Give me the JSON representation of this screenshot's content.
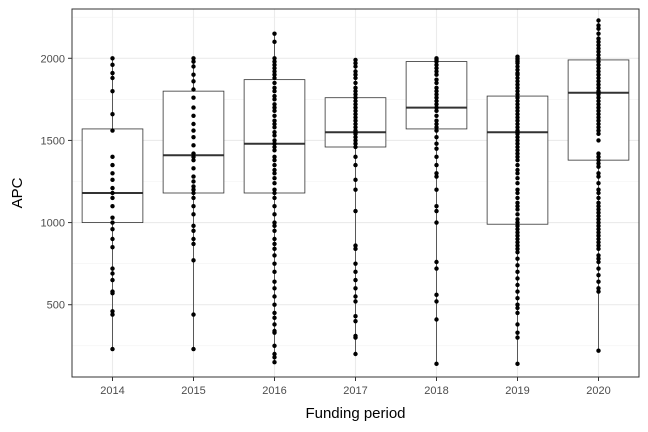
{
  "chart_data": {
    "type": "boxplot",
    "xlabel": "Funding period",
    "ylabel": "APC",
    "categories": [
      "2014",
      "2015",
      "2016",
      "2017",
      "2018",
      "2019",
      "2020"
    ],
    "ylim": [
      60,
      2300
    ],
    "yticks": [
      500,
      1000,
      1500,
      2000
    ],
    "grid": true,
    "boxes": [
      {
        "category": "2014",
        "min": 230,
        "q1": 1000,
        "median": 1180,
        "q3": 1570,
        "max": 2000
      },
      {
        "category": "2015",
        "min": 230,
        "q1": 1180,
        "median": 1410,
        "q3": 1800,
        "max": 2000
      },
      {
        "category": "2016",
        "min": 150,
        "q1": 1180,
        "median": 1480,
        "q3": 1870,
        "max": 2150
      },
      {
        "category": "2017",
        "min": 200,
        "q1": 1460,
        "median": 1550,
        "q3": 1760,
        "max": 1990
      },
      {
        "category": "2018",
        "min": 140,
        "q1": 1570,
        "median": 1700,
        "q3": 1980,
        "max": 2000
      },
      {
        "category": "2019",
        "min": 140,
        "q1": 990,
        "median": 1550,
        "q3": 1770,
        "max": 2010
      },
      {
        "category": "2020",
        "min": 220,
        "q1": 1380,
        "median": 1790,
        "q3": 1990,
        "max": 2230
      }
    ],
    "points": [
      {
        "category": "2014",
        "values": [
          2000,
          1960,
          1910,
          1880,
          1800,
          1660,
          1560,
          1400,
          1350,
          1300,
          1260,
          1210,
          1180,
          1150,
          1100,
          1030,
          1000,
          960,
          900,
          850,
          720,
          690,
          650,
          580,
          570,
          460,
          440,
          230
        ]
      },
      {
        "category": "2015",
        "values": [
          2000,
          1980,
          1950,
          1900,
          1860,
          1810,
          1760,
          1700,
          1650,
          1600,
          1560,
          1520,
          1470,
          1420,
          1400,
          1380,
          1330,
          1280,
          1250,
          1220,
          1200,
          1180,
          1150,
          1100,
          1050,
          980,
          950,
          900,
          870,
          770,
          440,
          230
        ]
      },
      {
        "category": "2016",
        "values": [
          2150,
          2100,
          2000,
          1980,
          1960,
          1940,
          1920,
          1900,
          1880,
          1850,
          1820,
          1800,
          1770,
          1750,
          1720,
          1700,
          1680,
          1650,
          1620,
          1600,
          1580,
          1550,
          1530,
          1500,
          1480,
          1460,
          1440,
          1400,
          1380,
          1350,
          1320,
          1300,
          1270,
          1240,
          1200,
          1180,
          1150,
          1100,
          1050,
          1000,
          980,
          950,
          900,
          870,
          840,
          800,
          750,
          700,
          640,
          600,
          550,
          500,
          450,
          420,
          380,
          340,
          330,
          250,
          200,
          180,
          150
        ]
      },
      {
        "category": "2017",
        "values": [
          1990,
          1970,
          1950,
          1920,
          1900,
          1880,
          1850,
          1820,
          1800,
          1780,
          1760,
          1740,
          1720,
          1700,
          1680,
          1660,
          1640,
          1620,
          1600,
          1580,
          1560,
          1550,
          1540,
          1520,
          1500,
          1480,
          1460,
          1400,
          1350,
          1260,
          1200,
          1070,
          860,
          840,
          750,
          700,
          650,
          600,
          550,
          520,
          430,
          400,
          310,
          300,
          200
        ]
      },
      {
        "category": "2018",
        "values": [
          2000,
          1990,
          1980,
          1960,
          1940,
          1920,
          1900,
          1870,
          1850,
          1820,
          1800,
          1780,
          1760,
          1740,
          1720,
          1700,
          1680,
          1650,
          1620,
          1600,
          1580,
          1560,
          1520,
          1480,
          1450,
          1400,
          1350,
          1300,
          1280,
          1200,
          1100,
          1070,
          1000,
          760,
          720,
          560,
          520,
          410,
          140
        ]
      },
      {
        "category": "2019",
        "values": [
          2010,
          2000,
          1990,
          1980,
          1970,
          1950,
          1930,
          1910,
          1900,
          1880,
          1860,
          1840,
          1820,
          1800,
          1780,
          1760,
          1740,
          1720,
          1700,
          1680,
          1660,
          1640,
          1620,
          1600,
          1580,
          1560,
          1550,
          1540,
          1520,
          1500,
          1480,
          1460,
          1440,
          1420,
          1400,
          1380,
          1350,
          1320,
          1300,
          1270,
          1240,
          1200,
          1180,
          1150,
          1120,
          1100,
          1080,
          1050,
          1020,
          1000,
          980,
          960,
          940,
          920,
          900,
          880,
          860,
          840,
          820,
          780,
          740,
          700,
          660,
          620,
          580,
          540,
          500,
          480,
          450,
          380,
          330,
          300,
          140
        ]
      },
      {
        "category": "2020",
        "values": [
          2230,
          2200,
          2180,
          2150,
          2120,
          2100,
          2080,
          2060,
          2040,
          2020,
          2000,
          1980,
          1960,
          1940,
          1920,
          1900,
          1880,
          1860,
          1840,
          1820,
          1800,
          1790,
          1780,
          1760,
          1740,
          1720,
          1700,
          1680,
          1660,
          1640,
          1620,
          1600,
          1580,
          1560,
          1540,
          1500,
          1420,
          1400,
          1380,
          1360,
          1340,
          1300,
          1280,
          1240,
          1200,
          1180,
          1150,
          1120,
          1100,
          1080,
          1060,
          1040,
          1020,
          1000,
          980,
          960,
          940,
          920,
          900,
          880,
          860,
          840,
          800,
          780,
          760,
          720,
          680,
          640,
          600,
          580,
          220
        ]
      }
    ]
  }
}
